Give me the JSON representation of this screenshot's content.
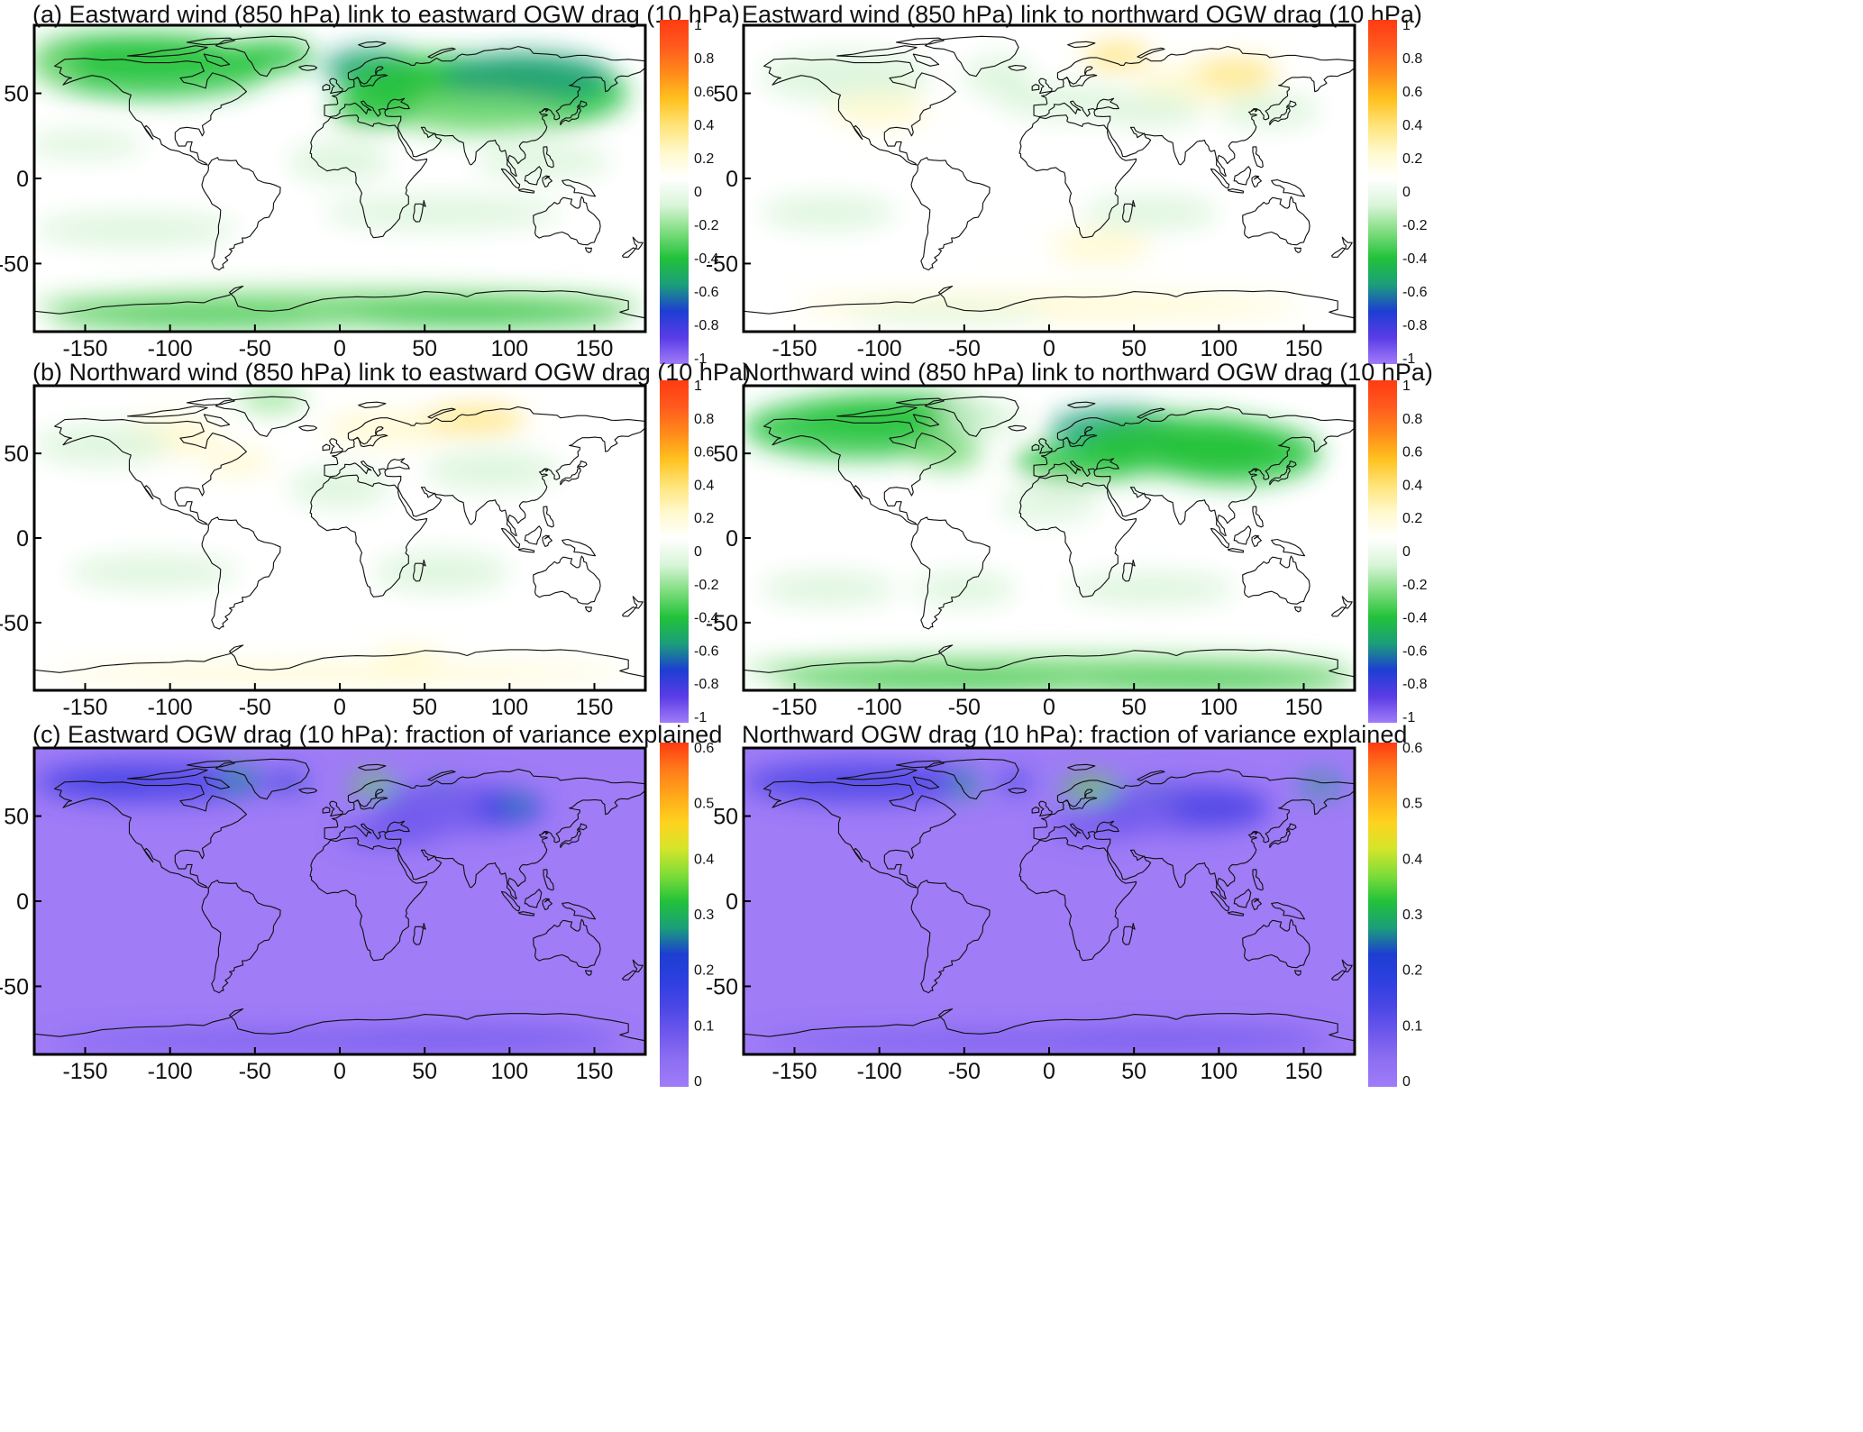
{
  "figure": {
    "xlim": [
      -180,
      180
    ],
    "ylim": [
      -90,
      90
    ],
    "xticks": [
      "-150",
      "-100",
      "-50",
      "0",
      "50",
      "100",
      "150"
    ],
    "yticks": [
      "50",
      "0",
      "-50"
    ],
    "colors": {
      "correlation_scale": [
        "#a07cf7",
        "#5a3ce6",
        "#1d3ed2",
        "#1b9e7a",
        "#22c23a",
        "#7fdd7f",
        "#d9f5d9",
        "#ffffff",
        "#fff9cc",
        "#ffe47a",
        "#ffc21f",
        "#ff8a1a",
        "#ff5a1e",
        "#ff3b12"
      ],
      "variance_scale": [
        "#a07cf7",
        "#8d6ff2",
        "#6f58ec",
        "#4b47e6",
        "#2e3fe0",
        "#1d3ed2",
        "#1b9e7a",
        "#22c23a",
        "#7fdd38",
        "#d5e52a",
        "#ffd21f",
        "#ffa81a",
        "#ff7a1a",
        "#ff3b12"
      ],
      "land_outline": "#111111"
    }
  },
  "panels": [
    {
      "title": "(a) Eastward wind (850 hPa) link to eastward OGW drag (10 hPa)",
      "colorbar_ticks": [
        "1",
        "0.8",
        "0.6",
        "0.4",
        "0.2",
        "0",
        "-0.2",
        "-0.4",
        "-0.6",
        "-0.8",
        "-1"
      ],
      "colorbar_range": [
        -1,
        1
      ]
    },
    {
      "title": "Eastward wind (850 hPa) link to northward OGW drag (10 hPa)",
      "colorbar_ticks": [
        "1",
        "0.8",
        "0.6",
        "0.4",
        "0.2",
        "0",
        "-0.2",
        "-0.4",
        "-0.6",
        "-0.8",
        "-1"
      ],
      "colorbar_range": [
        -1,
        1
      ]
    },
    {
      "title": "(b) Northward wind (850 hPa) link to eastward OGW drag (10 hPa)",
      "colorbar_ticks": [
        "1",
        "0.8",
        "0.6",
        "0.4",
        "0.2",
        "0",
        "-0.2",
        "-0.4",
        "-0.6",
        "-0.8",
        "-1"
      ],
      "colorbar_range": [
        -1,
        1
      ]
    },
    {
      "title": "Northward wind (850 hPa) link to northward OGW drag (10 hPa)",
      "colorbar_ticks": [
        "1",
        "0.8",
        "0.6",
        "0.4",
        "0.2",
        "0",
        "-0.2",
        "-0.4",
        "-0.6",
        "-0.8",
        "-1"
      ],
      "colorbar_range": [
        -1,
        1
      ]
    },
    {
      "title": "(c) Eastward OGW drag (10 hPa): fraction of variance explained",
      "colorbar_ticks": [
        "0.6",
        "0.5",
        "0.4",
        "0.3",
        "0.2",
        "0.1",
        "0"
      ],
      "colorbar_range": [
        0,
        0.6
      ]
    },
    {
      "title": "Northward OGW drag (10 hPa): fraction of variance explained",
      "colorbar_ticks": [
        "0.6",
        "0.5",
        "0.4",
        "0.3",
        "0.2",
        "0.1",
        "0"
      ],
      "colorbar_range": [
        0,
        0.6
      ]
    }
  ]
}
